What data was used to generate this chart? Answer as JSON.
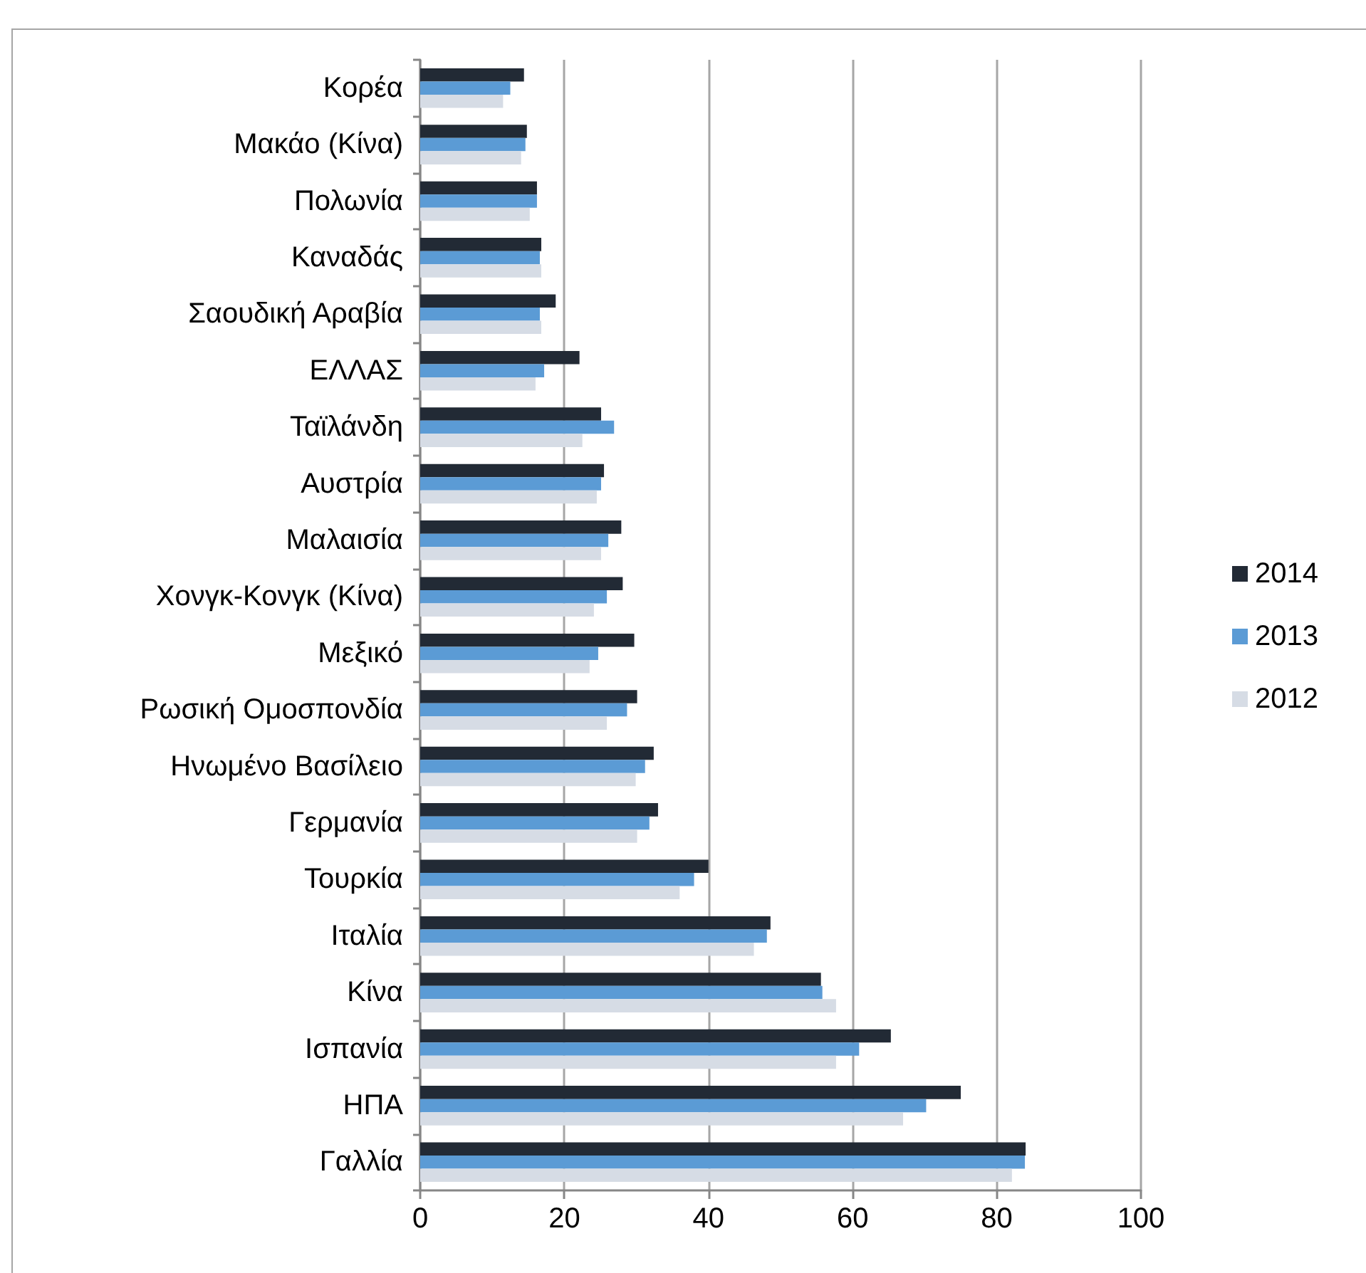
{
  "chart_data": {
    "type": "bar",
    "orientation": "horizontal",
    "categories": [
      "Κορέα",
      "Μακάο (Κίνα)",
      "Πολωνία",
      "Καναδάς",
      "Σαουδική Αραβία",
      "ΕΛΛΑΣ",
      "Ταϊλάνδη",
      "Αυστρία",
      "Μαλαισία",
      "Χονγκ-Κονγκ (Κίνα)",
      "Μεξικό",
      "Ρωσική Ομοσπονδία",
      "Ηνωμένο Βασίλειο",
      "Γερμανία",
      "Τουρκία",
      "Ιταλία",
      "Κίνα",
      "Ισπανία",
      "ΗΠΑ",
      "Γαλλία"
    ],
    "series": [
      {
        "name": "2014",
        "color": "#222a35",
        "values": [
          14.4,
          14.8,
          16.2,
          16.8,
          18.8,
          22.1,
          25.1,
          25.5,
          27.9,
          28.1,
          29.7,
          30.1,
          32.4,
          33.0,
          40.0,
          48.6,
          55.6,
          65.3,
          75.0,
          84.0
        ]
      },
      {
        "name": "2013",
        "color": "#5b9bd5",
        "values": [
          12.5,
          14.6,
          16.2,
          16.6,
          16.6,
          17.2,
          26.9,
          25.1,
          26.1,
          25.9,
          24.7,
          28.7,
          31.2,
          31.8,
          38.0,
          48.1,
          55.8,
          60.9,
          70.2,
          83.9
        ]
      },
      {
        "name": "2012",
        "color": "#d6dce5",
        "values": [
          11.5,
          14.0,
          15.2,
          16.8,
          16.8,
          16.0,
          22.5,
          24.5,
          25.1,
          24.1,
          23.5,
          25.9,
          29.9,
          30.1,
          36.0,
          46.3,
          57.7,
          57.7,
          67.0,
          82.1
        ]
      }
    ],
    "xlim": [
      0,
      100
    ],
    "xticks": [
      0,
      20,
      40,
      60,
      80,
      100
    ],
    "grid": "x",
    "legend": "right"
  }
}
